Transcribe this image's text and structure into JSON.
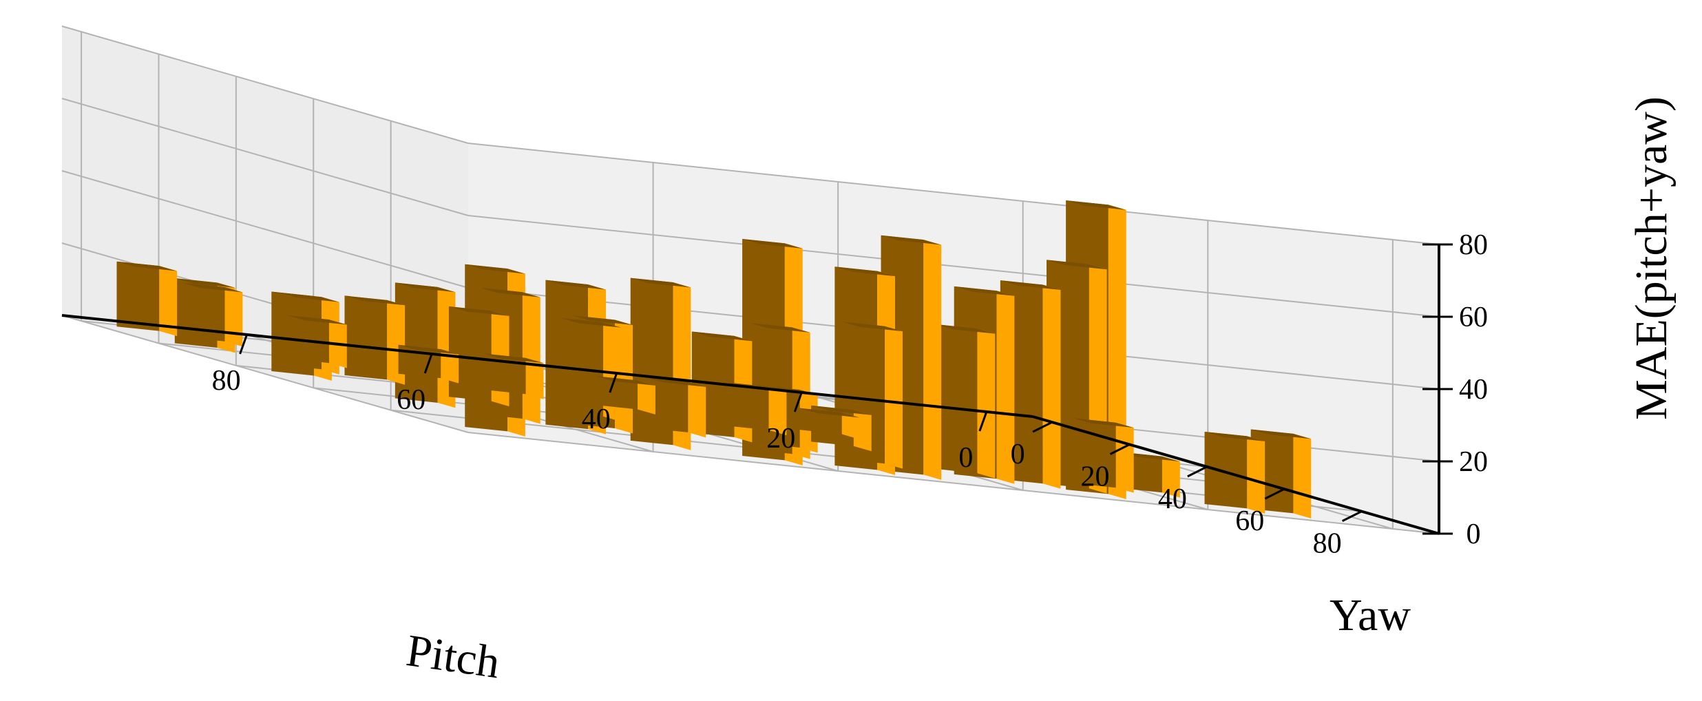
{
  "chart_data": {
    "type": "bar3d",
    "xlabel": "Pitch",
    "ylabel": "Yaw",
    "zlabel": "MAE(pitch+yaw)",
    "x_ticks": [
      "0",
      "20",
      "40",
      "60",
      "80"
    ],
    "y_ticks": [
      "0",
      "20",
      "40",
      "60",
      "80"
    ],
    "z_ticks": [
      "0",
      "20",
      "40",
      "60",
      "80"
    ],
    "xlim": [
      -5,
      100
    ],
    "ylim": [
      -5,
      100
    ],
    "zlim": [
      0,
      80
    ],
    "bin_width": 5,
    "grid": true,
    "colors": {
      "bar_side": "#ffa500",
      "bar_shade": "#8b5a00",
      "bar_top": "#7a4f00",
      "pane": "#f0f0f0",
      "grid": "#b3b3b3"
    },
    "bars": [
      {
        "x": 30,
        "y": 95,
        "z": 80
      },
      {
        "x": 30,
        "y": 90,
        "z": 62
      },
      {
        "x": 35,
        "y": 90,
        "z": 55
      },
      {
        "x": 40,
        "y": 90,
        "z": 52
      },
      {
        "x": 40,
        "y": 85,
        "z": 40
      },
      {
        "x": 50,
        "y": 95,
        "z": 65
      },
      {
        "x": 55,
        "y": 95,
        "z": 55
      },
      {
        "x": 50,
        "y": 85,
        "z": 38
      },
      {
        "x": 60,
        "y": 85,
        "z": 35
      },
      {
        "x": 65,
        "y": 95,
        "z": 60
      },
      {
        "x": 75,
        "y": 90,
        "z": 45
      },
      {
        "x": 80,
        "y": 80,
        "z": 40
      },
      {
        "x": 85,
        "y": 75,
        "z": 35
      },
      {
        "x": 90,
        "y": 65,
        "z": 32
      },
      {
        "x": 75,
        "y": 75,
        "z": 30
      },
      {
        "x": 60,
        "y": 70,
        "z": 28
      },
      {
        "x": 70,
        "y": 60,
        "z": 26
      },
      {
        "x": 80,
        "y": 55,
        "z": 25
      },
      {
        "x": 85,
        "y": 40,
        "z": 22
      },
      {
        "x": 95,
        "y": 45,
        "z": 22
      },
      {
        "x": 90,
        "y": 35,
        "z": 20
      },
      {
        "x": 95,
        "y": 20,
        "z": 18
      },
      {
        "x": 95,
        "y": 5,
        "z": 18
      },
      {
        "x": 90,
        "y": 10,
        "z": 15
      },
      {
        "x": 85,
        "y": 25,
        "z": 12
      },
      {
        "x": 95,
        "y": 95,
        "z": 45
      },
      {
        "x": 10,
        "y": 95,
        "z": 22
      },
      {
        "x": 15,
        "y": 95,
        "z": 20
      },
      {
        "x": 25,
        "y": 85,
        "z": 18
      },
      {
        "x": 20,
        "y": 85,
        "z": 10
      },
      {
        "x": 55,
        "y": 75,
        "z": 16
      },
      {
        "x": 65,
        "y": 70,
        "z": 14
      },
      {
        "x": 70,
        "y": 40,
        "z": 10
      },
      {
        "x": 75,
        "y": 30,
        "z": 8
      },
      {
        "x": 60,
        "y": 45,
        "z": 8
      },
      {
        "x": 50,
        "y": 55,
        "z": 12
      },
      {
        "x": 45,
        "y": 65,
        "z": 10
      },
      {
        "x": 40,
        "y": 50,
        "z": 6
      }
    ]
  }
}
